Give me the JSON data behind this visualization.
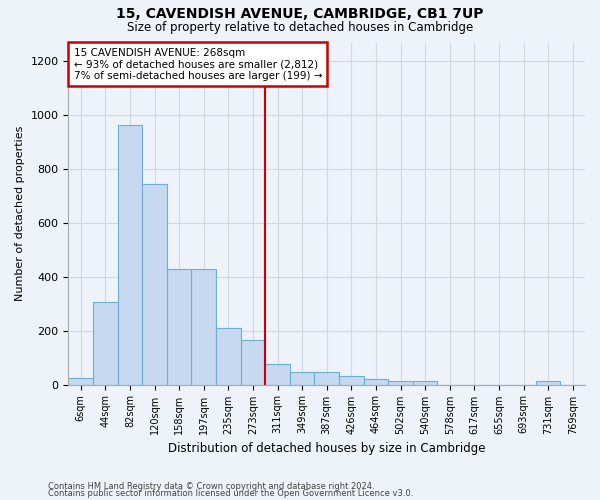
{
  "title": "15, CAVENDISH AVENUE, CAMBRIDGE, CB1 7UP",
  "subtitle": "Size of property relative to detached houses in Cambridge",
  "xlabel": "Distribution of detached houses by size in Cambridge",
  "ylabel": "Number of detached properties",
  "footnote1": "Contains HM Land Registry data © Crown copyright and database right 2024.",
  "footnote2": "Contains public sector information licensed under the Open Government Licence v3.0.",
  "bar_labels": [
    "6sqm",
    "44sqm",
    "82sqm",
    "120sqm",
    "158sqm",
    "197sqm",
    "235sqm",
    "273sqm",
    "311sqm",
    "349sqm",
    "387sqm",
    "426sqm",
    "464sqm",
    "502sqm",
    "540sqm",
    "578sqm",
    "617sqm",
    "655sqm",
    "693sqm",
    "731sqm",
    "769sqm"
  ],
  "bar_values": [
    25,
    305,
    965,
    745,
    430,
    430,
    210,
    165,
    75,
    48,
    48,
    30,
    20,
    12,
    12,
    0,
    0,
    0,
    0,
    12,
    0
  ],
  "bar_color": "#c6d9f0",
  "bar_edge_color": "#6baed6",
  "grid_color": "#d0d8e8",
  "vline_x": 7.5,
  "vline_color": "#cc0000",
  "annotation_line1": "15 CAVENDISH AVENUE: 268sqm",
  "annotation_line2": "← 93% of detached houses are smaller (2,812)",
  "annotation_line3": "7% of semi-detached houses are larger (199) →",
  "annotation_box_color": "#cc0000",
  "annotation_box_bg": "#ffffff",
  "ylim": [
    0,
    1270
  ],
  "yticks": [
    0,
    200,
    400,
    600,
    800,
    1000,
    1200
  ],
  "background_color": "#eef2f9"
}
